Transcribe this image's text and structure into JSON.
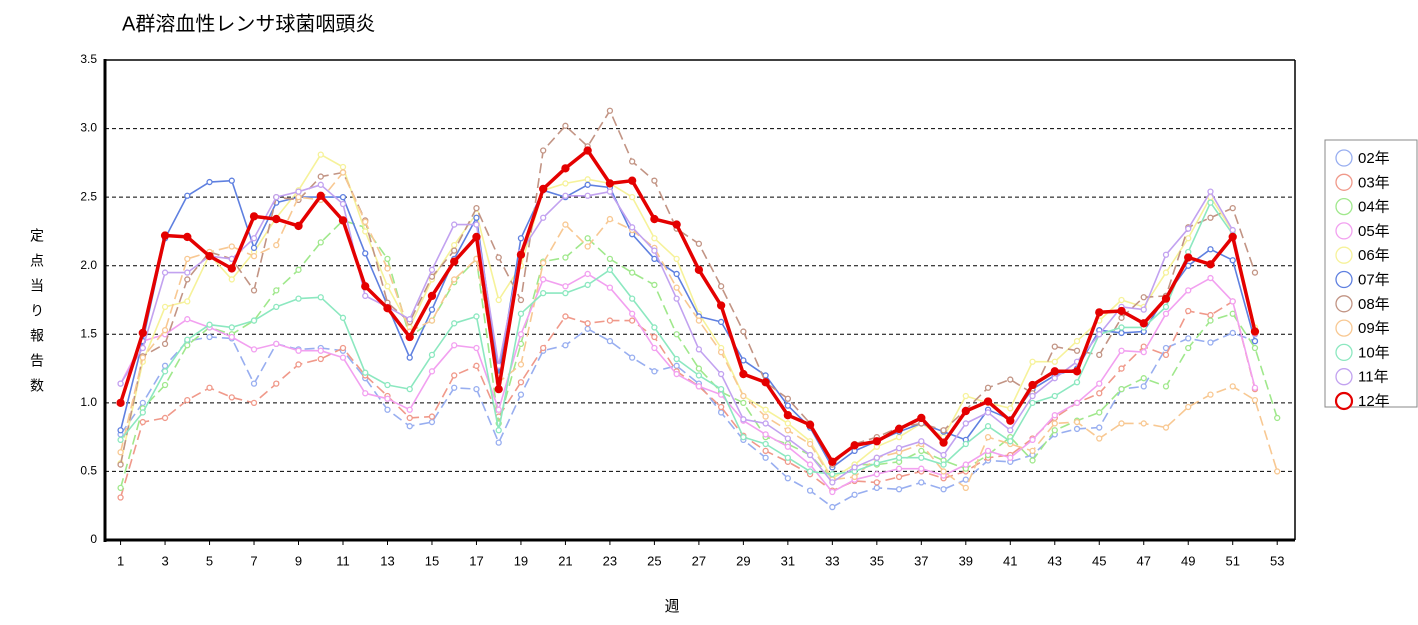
{
  "chart_data": {
    "type": "line",
    "title": "A群溶血性レンサ球菌咽頭炎",
    "y_label": "定点当り報告数",
    "x_label": "週",
    "x": [
      1,
      2,
      3,
      4,
      5,
      6,
      7,
      8,
      9,
      10,
      11,
      12,
      13,
      14,
      15,
      16,
      17,
      18,
      19,
      20,
      21,
      22,
      23,
      24,
      25,
      26,
      27,
      28,
      29,
      30,
      31,
      32,
      33,
      34,
      35,
      36,
      37,
      38,
      39,
      40,
      41,
      42,
      43,
      44,
      45,
      46,
      47,
      48,
      49,
      50,
      51,
      52,
      53
    ],
    "xlim": [
      0.3,
      53.8
    ],
    "xticks": [
      1,
      3,
      5,
      7,
      9,
      11,
      13,
      15,
      17,
      19,
      21,
      23,
      25,
      27,
      29,
      31,
      33,
      35,
      37,
      39,
      41,
      43,
      45,
      47,
      49,
      51,
      53
    ],
    "ylim": [
      0,
      3.5
    ],
    "yticks": [
      0,
      0.5,
      {
        "value": 1,
        "label": "1.0"
      },
      1.5,
      {
        "value": 2,
        "label": "2.0"
      },
      2.5,
      {
        "value": 3,
        "label": "3.0"
      },
      3.5
    ],
    "grid": true,
    "legend": "right",
    "series": [
      {
        "name": "02年",
        "color": "#98aef0",
        "dashed": true,
        "values": [
          0.77,
          1.0,
          1.27,
          1.45,
          1.48,
          1.47,
          1.14,
          1.43,
          1.39,
          1.4,
          1.38,
          1.18,
          0.95,
          0.83,
          0.86,
          1.11,
          1.1,
          0.71,
          1.06,
          1.38,
          1.42,
          1.54,
          1.45,
          1.33,
          1.23,
          1.27,
          1.14,
          0.93,
          0.73,
          0.6,
          0.45,
          0.36,
          0.24,
          0.33,
          0.38,
          0.37,
          0.42,
          0.37,
          0.44,
          0.58,
          0.57,
          0.62,
          0.77,
          0.81,
          0.82,
          1.1,
          1.12,
          1.4,
          1.47,
          1.44,
          1.51,
          1.45,
          null
        ]
      },
      {
        "name": "03年",
        "color": "#f0998a",
        "dashed": true,
        "values": [
          0.31,
          0.86,
          0.89,
          1.02,
          1.11,
          1.04,
          1.0,
          1.14,
          1.28,
          1.32,
          1.4,
          1.2,
          1.05,
          0.89,
          0.9,
          1.2,
          1.27,
          0.9,
          1.15,
          1.4,
          1.63,
          1.58,
          1.6,
          1.6,
          1.48,
          1.23,
          1.12,
          0.97,
          0.76,
          0.65,
          0.57,
          0.48,
          0.36,
          0.43,
          0.42,
          0.46,
          0.5,
          0.45,
          0.5,
          0.6,
          0.62,
          0.74,
          0.89,
          1.0,
          1.07,
          1.25,
          1.41,
          1.35,
          1.67,
          1.64,
          1.74,
          1.1,
          null
        ]
      },
      {
        "name": "04年",
        "color": "#a0e88c",
        "dashed": true,
        "values": [
          0.38,
          0.96,
          1.13,
          1.42,
          1.55,
          1.5,
          1.6,
          1.82,
          1.97,
          2.17,
          2.33,
          2.28,
          2.05,
          1.48,
          1.6,
          1.88,
          2.05,
          0.85,
          1.43,
          2.03,
          2.06,
          2.2,
          2.05,
          1.95,
          1.86,
          1.5,
          1.25,
          1.08,
          1.0,
          0.75,
          0.7,
          0.62,
          0.45,
          0.55,
          0.55,
          0.57,
          0.65,
          0.58,
          0.52,
          0.62,
          0.75,
          0.58,
          0.8,
          0.87,
          0.93,
          1.1,
          1.18,
          1.12,
          1.4,
          1.6,
          1.65,
          1.4,
          0.89
        ]
      },
      {
        "name": "05年",
        "color": "#f2a0f0",
        "dashed": false,
        "values": [
          1.14,
          1.45,
          1.5,
          1.61,
          1.55,
          1.48,
          1.39,
          1.43,
          1.38,
          1.38,
          1.33,
          1.07,
          1.03,
          0.95,
          1.23,
          1.42,
          1.4,
          0.95,
          1.5,
          1.9,
          1.85,
          1.94,
          1.84,
          1.65,
          1.4,
          1.21,
          1.12,
          1.06,
          0.87,
          0.77,
          0.68,
          0.55,
          0.35,
          0.44,
          0.48,
          0.52,
          0.52,
          0.47,
          0.55,
          0.65,
          0.6,
          0.73,
          0.91,
          1.0,
          1.14,
          1.38,
          1.37,
          1.65,
          1.82,
          1.91,
          1.74,
          1.11,
          null
        ]
      },
      {
        "name": "06年",
        "color": "#f6f29a",
        "dashed": false,
        "values": [
          0.56,
          1.3,
          1.7,
          1.74,
          2.08,
          1.9,
          2.1,
          2.35,
          2.55,
          2.81,
          2.72,
          2.25,
          1.85,
          1.55,
          1.9,
          2.15,
          2.38,
          1.75,
          2.0,
          2.55,
          2.6,
          2.63,
          2.6,
          2.5,
          2.2,
          2.05,
          1.65,
          1.4,
          1.05,
          0.95,
          0.85,
          0.72,
          0.45,
          0.55,
          0.68,
          0.75,
          0.85,
          0.75,
          1.05,
          1.0,
          0.96,
          1.3,
          1.3,
          1.45,
          1.6,
          1.75,
          1.7,
          1.95,
          2.2,
          2.5,
          2.25,
          1.55,
          null
        ]
      },
      {
        "name": "07年",
        "color": "#5f80e0",
        "dashed": false,
        "values": [
          0.8,
          1.45,
          2.2,
          2.51,
          2.61,
          2.62,
          2.13,
          2.46,
          2.5,
          2.5,
          2.5,
          2.09,
          1.71,
          1.33,
          1.68,
          2.05,
          2.35,
          1.2,
          2.2,
          2.55,
          2.5,
          2.59,
          2.57,
          2.23,
          2.05,
          1.94,
          1.63,
          1.59,
          1.31,
          1.2,
          0.98,
          0.82,
          0.53,
          0.65,
          0.72,
          0.79,
          0.85,
          0.79,
          0.73,
          0.95,
          0.88,
          1.1,
          1.2,
          1.25,
          1.53,
          1.51,
          1.52,
          1.78,
          2.0,
          2.12,
          2.04,
          1.45,
          null
        ]
      },
      {
        "name": "08年",
        "color": "#c29484",
        "dashed": true,
        "values": [
          0.55,
          1.34,
          1.43,
          1.9,
          2.1,
          2.05,
          1.82,
          2.5,
          2.48,
          2.65,
          2.68,
          2.33,
          1.73,
          1.59,
          1.92,
          2.11,
          2.42,
          2.06,
          1.75,
          2.84,
          3.02,
          2.87,
          3.13,
          2.76,
          2.62,
          2.27,
          2.16,
          1.85,
          1.52,
          1.15,
          1.03,
          0.85,
          0.55,
          0.7,
          0.75,
          0.82,
          0.85,
          0.8,
          0.95,
          1.11,
          1.17,
          1.07,
          1.41,
          1.38,
          1.35,
          1.62,
          1.77,
          1.78,
          2.28,
          2.35,
          2.42,
          1.95,
          null
        ]
      },
      {
        "name": "09年",
        "color": "#f8c892",
        "dashed": true,
        "values": [
          0.64,
          1.33,
          1.53,
          2.05,
          2.1,
          2.14,
          2.07,
          2.15,
          2.5,
          2.48,
          2.68,
          2.32,
          1.98,
          1.52,
          1.6,
          1.9,
          2.05,
          1.15,
          1.28,
          2.02,
          2.3,
          2.14,
          2.34,
          2.26,
          2.13,
          1.84,
          1.6,
          1.37,
          1.05,
          0.9,
          0.8,
          0.7,
          0.44,
          0.46,
          0.6,
          0.64,
          0.7,
          0.5,
          0.38,
          0.75,
          0.7,
          0.65,
          0.85,
          0.86,
          0.74,
          0.85,
          0.85,
          0.82,
          0.97,
          1.06,
          1.12,
          1.02,
          0.5
        ]
      },
      {
        "name": "10年",
        "color": "#8ce8c0",
        "dashed": false,
        "values": [
          0.73,
          0.93,
          1.23,
          1.46,
          1.57,
          1.55,
          1.6,
          1.7,
          1.76,
          1.77,
          1.62,
          1.22,
          1.13,
          1.1,
          1.35,
          1.58,
          1.63,
          0.8,
          1.65,
          1.8,
          1.8,
          1.86,
          1.97,
          1.76,
          1.55,
          1.32,
          1.2,
          1.1,
          0.75,
          0.7,
          0.6,
          0.5,
          0.48,
          0.5,
          0.56,
          0.6,
          0.6,
          0.55,
          0.7,
          0.83,
          0.72,
          1.0,
          1.05,
          1.15,
          1.5,
          1.55,
          1.55,
          1.7,
          2.1,
          2.46,
          2.23,
          1.5,
          null
        ]
      },
      {
        "name": "11年",
        "color": "#c2a2f0",
        "dashed": false,
        "values": [
          1.14,
          1.4,
          1.95,
          1.95,
          2.07,
          2.05,
          2.2,
          2.5,
          2.54,
          2.59,
          2.45,
          1.78,
          1.7,
          1.61,
          1.97,
          2.3,
          2.3,
          1.27,
          2.1,
          2.35,
          2.51,
          2.51,
          2.54,
          2.28,
          2.11,
          1.76,
          1.39,
          1.21,
          0.88,
          0.85,
          0.74,
          0.62,
          0.42,
          0.53,
          0.6,
          0.67,
          0.72,
          0.62,
          0.85,
          0.93,
          0.8,
          1.05,
          1.18,
          1.3,
          1.5,
          1.7,
          1.68,
          2.08,
          2.27,
          2.54,
          2.26,
          1.5,
          null
        ]
      },
      {
        "name": "12年",
        "color": "#e40000",
        "dashed": false,
        "values": [
          1.0,
          1.51,
          2.22,
          2.21,
          2.07,
          1.98,
          2.36,
          2.34,
          2.29,
          2.51,
          2.33,
          1.85,
          1.69,
          1.48,
          1.78,
          2.03,
          2.21,
          1.1,
          2.08,
          2.56,
          2.71,
          2.84,
          2.6,
          2.62,
          2.34,
          2.3,
          1.97,
          1.71,
          1.21,
          1.15,
          0.91,
          0.84,
          0.57,
          0.69,
          0.72,
          0.81,
          0.89,
          0.71,
          0.94,
          1.01,
          0.87,
          1.13,
          1.23,
          1.23,
          1.66,
          1.67,
          1.58,
          1.76,
          2.06,
          2.01,
          2.21,
          1.52,
          null
        ]
      }
    ]
  }
}
